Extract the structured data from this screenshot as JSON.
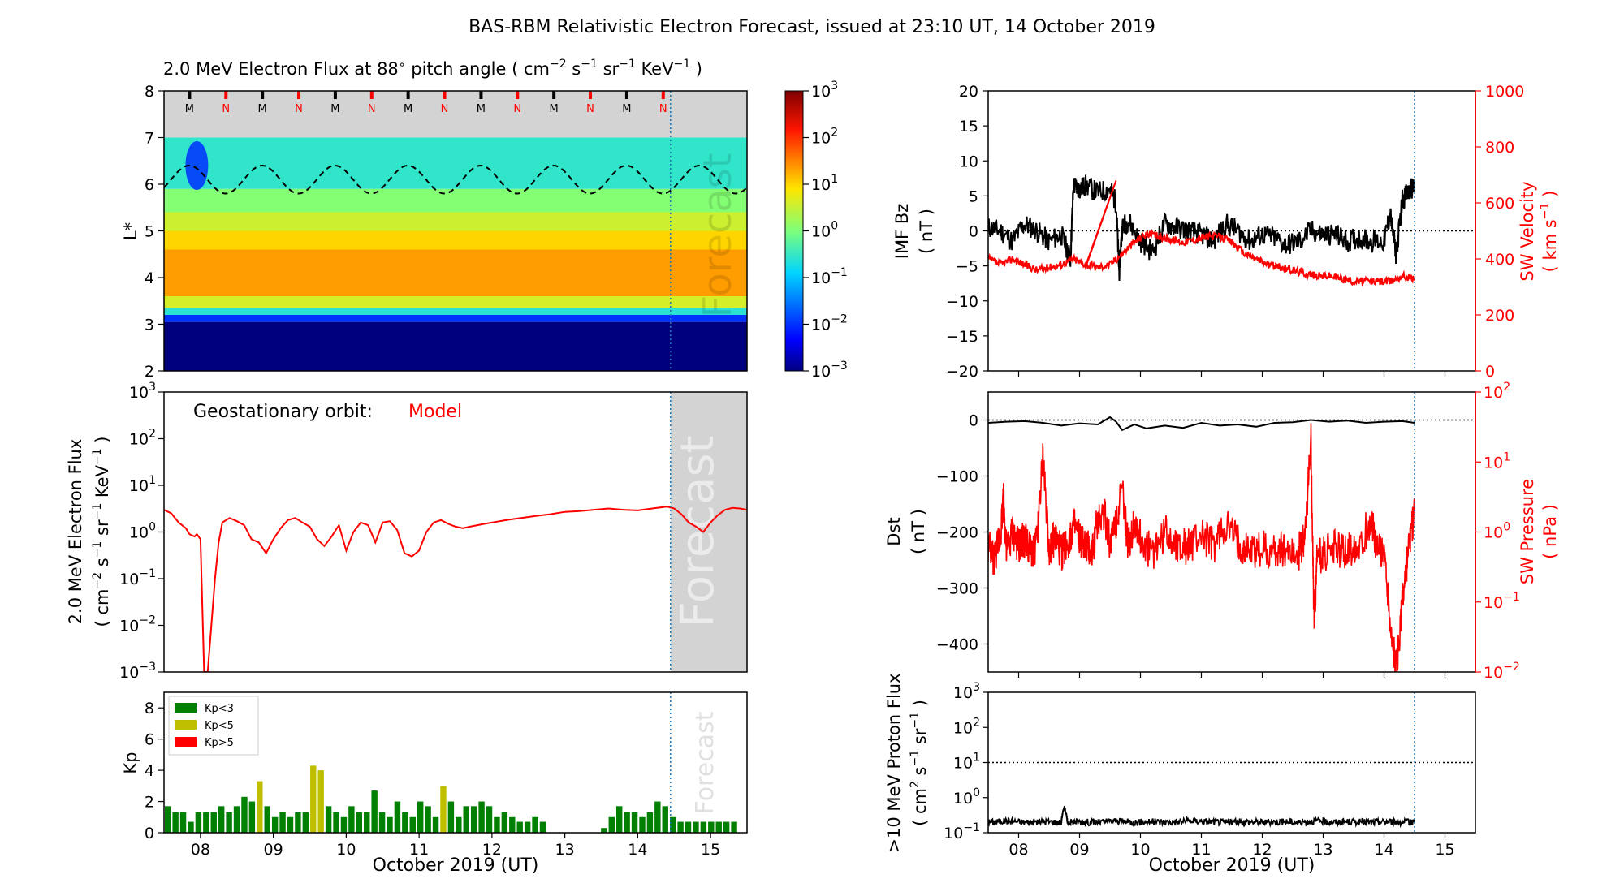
{
  "page": {
    "title": "BAS-RBM Relativistic Electron Forecast, issued at 23:10 UT, 14 October 2019"
  },
  "colors": {
    "black": "#000000",
    "red": "#ff0000",
    "forecast_gray": "#d3d3d3",
    "forecast_line": "#1f77b4",
    "kp_low": "#008000",
    "kp_mid": "#bfbf00",
    "kp_high": "#ff0000"
  },
  "chart_data": [
    {
      "id": "spectrogram",
      "type": "heatmap",
      "title_parts": {
        "main": "2.0 MeV Electron Flux at 88",
        "deg": "∘",
        "rest": " pitch angle ( cm",
        "e1": "−2",
        "s": " s",
        "e2": "−1",
        "sr": " sr",
        "e3": "−1",
        "kev": " KeV",
        "e4": "−1",
        "close": " )"
      },
      "ylabel": "L*",
      "y_ticks": [
        "2",
        "3",
        "4",
        "5",
        "6",
        "7",
        "8"
      ],
      "ylim": [
        2,
        8
      ],
      "xlim": [
        7.5,
        15.5
      ],
      "forecast_start": 14.45,
      "forecast_label": "Forecast",
      "orbit_markers": [
        {
          "t": 7.85,
          "label": "M",
          "color": "black"
        },
        {
          "t": 8.35,
          "label": "N",
          "color": "red"
        },
        {
          "t": 8.85,
          "label": "M",
          "color": "black"
        },
        {
          "t": 9.35,
          "label": "N",
          "color": "red"
        },
        {
          "t": 9.85,
          "label": "M",
          "color": "black"
        },
        {
          "t": 10.35,
          "label": "N",
          "color": "red"
        },
        {
          "t": 10.85,
          "label": "M",
          "color": "black"
        },
        {
          "t": 11.35,
          "label": "N",
          "color": "red"
        },
        {
          "t": 11.85,
          "label": "M",
          "color": "black"
        },
        {
          "t": 12.35,
          "label": "N",
          "color": "red"
        },
        {
          "t": 12.85,
          "label": "M",
          "color": "black"
        },
        {
          "t": 13.35,
          "label": "N",
          "color": "red"
        },
        {
          "t": 13.85,
          "label": "M",
          "color": "black"
        },
        {
          "t": 14.35,
          "label": "N",
          "color": "red"
        }
      ],
      "colorbar": {
        "ticks": [
          {
            "b": "10",
            "e": "3"
          },
          {
            "b": "10",
            "e": "2"
          },
          {
            "b": "10",
            "e": "1"
          },
          {
            "b": "10",
            "e": "0"
          },
          {
            "b": "10",
            "e": "−1"
          },
          {
            "b": "10",
            "e": "−2"
          },
          {
            "b": "10",
            "e": "−3"
          }
        ],
        "range_log": [
          -3,
          3
        ]
      },
      "bands_L": [
        {
          "L0": 2.0,
          "L1": 3.05,
          "logflux": -3.0
        },
        {
          "L0": 3.05,
          "L1": 3.2,
          "logflux": -2.0
        },
        {
          "L0": 3.2,
          "L1": 3.35,
          "logflux": -0.6
        },
        {
          "L0": 3.35,
          "L1": 3.6,
          "logflux": 0.6
        },
        {
          "L0": 3.6,
          "L1": 4.6,
          "logflux": 1.35
        },
        {
          "L0": 4.6,
          "L1": 5.0,
          "logflux": 1.0
        },
        {
          "L0": 5.0,
          "L1": 5.4,
          "logflux": 0.55
        },
        {
          "L0": 5.4,
          "L1": 5.9,
          "logflux": 0.05
        },
        {
          "L0": 5.9,
          "L1": 7.0,
          "logflux": -0.55
        }
      ],
      "magnetopause_L_mean": 6.1,
      "magnetopause_L_amp": 0.3
    },
    {
      "id": "geo_flux",
      "type": "line",
      "annotation_label": "Geostationary orbit:",
      "annotation_model": "Model",
      "ylabel_line1_parts": {
        "text": "2.0 MeV Electron Flux"
      },
      "ylabel_line2_parts": {
        "open": "( cm",
        "e1": "−2",
        "s": " s",
        "e2": "−1",
        "sr": " sr",
        "e3": "−1",
        "kev": " KeV",
        "e4": "−1",
        "close": " )"
      },
      "y_ticks": [
        {
          "b": "10",
          "e": "−3"
        },
        {
          "b": "10",
          "e": "−2"
        },
        {
          "b": "10",
          "e": "−1"
        },
        {
          "b": "10",
          "e": "0"
        },
        {
          "b": "10",
          "e": "1"
        },
        {
          "b": "10",
          "e": "2"
        },
        {
          "b": "10",
          "e": "3"
        }
      ],
      "ylim_log": [
        -3,
        3
      ],
      "xlim": [
        7.5,
        15.5
      ],
      "forecast_start": 14.45,
      "forecast_label": "Forecast",
      "x": [
        7.5,
        7.6,
        7.7,
        7.8,
        7.85,
        7.88,
        7.92,
        7.95,
        8.0,
        8.05,
        8.1,
        8.15,
        8.2,
        8.25,
        8.3,
        8.4,
        8.5,
        8.6,
        8.7,
        8.8,
        8.9,
        9.0,
        9.1,
        9.2,
        9.3,
        9.4,
        9.5,
        9.6,
        9.7,
        9.8,
        9.9,
        10.0,
        10.1,
        10.2,
        10.3,
        10.4,
        10.5,
        10.6,
        10.7,
        10.8,
        10.9,
        11.0,
        11.1,
        11.2,
        11.3,
        11.4,
        11.5,
        11.6,
        11.7,
        11.8,
        11.9,
        12.0,
        12.2,
        12.4,
        12.6,
        12.8,
        13.0,
        13.2,
        13.4,
        13.6,
        13.8,
        14.0,
        14.2,
        14.4,
        14.5,
        14.6,
        14.7,
        14.8,
        14.9,
        15.0,
        15.1,
        15.2,
        15.3,
        15.4,
        15.5
      ],
      "y": [
        3.0,
        2.5,
        1.6,
        1.2,
        0.9,
        0.85,
        0.8,
        0.9,
        0.7,
        0.001,
        0.001,
        0.01,
        0.1,
        0.6,
        1.6,
        2.0,
        1.7,
        1.4,
        0.7,
        0.6,
        0.35,
        0.7,
        1.2,
        1.8,
        2.0,
        1.6,
        1.3,
        0.7,
        0.5,
        0.8,
        1.4,
        0.4,
        1.0,
        1.6,
        1.4,
        0.6,
        1.6,
        1.7,
        1.1,
        0.35,
        0.3,
        0.4,
        1.0,
        1.6,
        1.8,
        1.5,
        1.3,
        1.2,
        1.3,
        1.4,
        1.5,
        1.6,
        1.8,
        2.0,
        2.2,
        2.4,
        2.7,
        2.8,
        3.0,
        3.2,
        3.0,
        2.9,
        3.2,
        3.5,
        3.2,
        2.4,
        1.6,
        1.3,
        1.0,
        1.6,
        2.3,
        3.0,
        3.3,
        3.2,
        3.0
      ]
    },
    {
      "id": "kp",
      "type": "bar",
      "ylabel": "Kp",
      "y_ticks": [
        "0",
        "2",
        "4",
        "6",
        "8"
      ],
      "ylim": [
        0,
        9
      ],
      "xlim": [
        7.5,
        15.5
      ],
      "xlabel": "October 2019 (UT)",
      "x_ticks": [
        "08",
        "09",
        "10",
        "11",
        "12",
        "13",
        "14",
        "15"
      ],
      "forecast_start": 14.45,
      "forecast_label": "Forecast",
      "legend": [
        {
          "label": "Kp<3",
          "color": "#008000"
        },
        {
          "label": "Kp<5",
          "color": "#bfbf00"
        },
        {
          "label": "Kp>5",
          "color": "#ff0000"
        }
      ],
      "bar_width_days": 0.105,
      "values": [
        1.7,
        1.3,
        1.3,
        0.7,
        1.3,
        1.3,
        1.3,
        1.7,
        1.3,
        1.7,
        2.3,
        2.0,
        3.3,
        1.7,
        1.0,
        1.3,
        1.0,
        1.3,
        1.3,
        4.3,
        4.0,
        1.7,
        1.3,
        1.0,
        1.7,
        1.3,
        1.3,
        2.7,
        1.3,
        1.0,
        2.0,
        1.3,
        1.0,
        2.0,
        1.7,
        1.0,
        3.0,
        2.0,
        1.0,
        1.7,
        1.7,
        2.0,
        1.7,
        1.0,
        1.3,
        1.0,
        0.7,
        0.7,
        1.0,
        0.7,
        0.0,
        0.0,
        0.0,
        0.0,
        0.0,
        0.0,
        0.0,
        0.3,
        1.0,
        1.7,
        1.3,
        1.3,
        1.0,
        1.3,
        2.0,
        1.7,
        1.0,
        0.7,
        0.7,
        0.7,
        0.7,
        0.7,
        0.7,
        0.7,
        0.7
      ]
    },
    {
      "id": "imf_sw",
      "type": "line",
      "ylabel_left_line1": "IMF Bz",
      "ylabel_left_line2": "( nT )",
      "ylabel_right_line1": "SW Velocity",
      "ylabel_right_line2_parts": {
        "open": "( km s",
        "e": "−1",
        "close": " )"
      },
      "y_ticks_left": [
        "−20",
        "−15",
        "−10",
        "−5",
        "0",
        "5",
        "10",
        "15",
        "20"
      ],
      "ylim_left": [
        -20,
        20
      ],
      "y_ticks_right": [
        "0",
        "200",
        "400",
        "600",
        "800",
        "1000"
      ],
      "ylim_right": [
        0,
        1000
      ],
      "xlim": [
        7.5,
        15.5
      ],
      "now": 14.5,
      "series": [
        {
          "axis": "left",
          "color": "#000000",
          "x": [
            7.5,
            7.7,
            7.9,
            8.1,
            8.3,
            8.5,
            8.7,
            8.85,
            8.9,
            9.0,
            9.1,
            9.3,
            9.5,
            9.6,
            9.65,
            9.7,
            9.8,
            10.0,
            10.2,
            10.4,
            10.6,
            10.8,
            11.0,
            11.2,
            11.4,
            11.6,
            11.8,
            12.0,
            12.2,
            12.4,
            12.6,
            12.8,
            13.0,
            13.2,
            13.4,
            13.6,
            13.8,
            14.0,
            14.1,
            14.2,
            14.3,
            14.4,
            14.5
          ],
          "y": [
            0.5,
            0.0,
            -1.5,
            1.0,
            0.0,
            -1.5,
            -0.5,
            -4.0,
            6.5,
            6.0,
            6.5,
            5.5,
            6.0,
            4.0,
            -6.0,
            0.5,
            1.5,
            -1.5,
            -3.0,
            1.0,
            0.5,
            0.0,
            -0.5,
            -1.5,
            1.0,
            0.0,
            -1.5,
            -0.5,
            -1.0,
            -2.0,
            -1.5,
            0.0,
            -0.5,
            -0.5,
            -1.5,
            -1.0,
            -1.5,
            -1.5,
            2.5,
            -3.5,
            4.5,
            5.5,
            6.5
          ]
        },
        {
          "axis": "right",
          "color": "#ff0000",
          "x": [
            7.5,
            7.7,
            7.9,
            8.1,
            8.3,
            8.5,
            8.7,
            8.9,
            9.1,
            9.3,
            9.5,
            9.7,
            9.9,
            10.1,
            10.3,
            10.5,
            10.7,
            10.9,
            11.1,
            11.3,
            11.5,
            11.7,
            11.9,
            12.1,
            12.3,
            12.5,
            12.7,
            12.9,
            13.1,
            13.3,
            13.5,
            13.7,
            13.9,
            14.1,
            14.3,
            14.5
          ],
          "y": [
            400,
            380,
            400,
            380,
            360,
            370,
            380,
            400,
            380,
            370,
            380,
            420,
            460,
            490,
            480,
            470,
            460,
            470,
            480,
            480,
            460,
            420,
            400,
            380,
            370,
            360,
            350,
            340,
            340,
            330,
            320,
            320,
            320,
            320,
            340,
            330
          ]
        }
      ]
    },
    {
      "id": "dst_swp",
      "type": "line",
      "ylabel_left_line1": "Dst",
      "ylabel_left_line2": "( nT )",
      "ylabel_right_line1": "SW Pressure",
      "ylabel_right_line2": "( nPa )",
      "y_ticks_left": [
        "−400",
        "−300",
        "−200",
        "−100",
        "0"
      ],
      "ylim_left": [
        -450,
        50
      ],
      "y_ticks_right": [
        {
          "b": "10",
          "e": "−2"
        },
        {
          "b": "10",
          "e": "−1"
        },
        {
          "b": "10",
          "e": "0"
        },
        {
          "b": "10",
          "e": "1"
        },
        {
          "b": "10",
          "e": "2"
        }
      ],
      "ylim_right_log": [
        -2,
        2
      ],
      "xlim": [
        7.5,
        15.5
      ],
      "now": 14.5,
      "series": [
        {
          "axis": "left",
          "color": "#000000",
          "x": [
            7.5,
            7.8,
            8.1,
            8.4,
            8.7,
            9.0,
            9.3,
            9.5,
            9.6,
            9.7,
            9.9,
            10.1,
            10.4,
            10.7,
            11.0,
            11.3,
            11.6,
            11.9,
            12.2,
            12.5,
            12.8,
            13.1,
            13.4,
            13.7,
            14.0,
            14.3,
            14.5
          ],
          "y": [
            -5,
            -3,
            -2,
            -5,
            -10,
            -6,
            -8,
            5,
            -3,
            -18,
            -8,
            -15,
            -10,
            -14,
            -5,
            -10,
            -8,
            -12,
            -5,
            -4,
            0,
            -3,
            -1,
            -5,
            -3,
            -2,
            -5
          ]
        },
        {
          "axis": "right",
          "color": "#ff0000",
          "x": [
            7.5,
            7.6,
            7.7,
            7.75,
            7.8,
            7.9,
            8.0,
            8.1,
            8.2,
            8.3,
            8.4,
            8.5,
            8.6,
            8.7,
            8.8,
            8.9,
            9.0,
            9.1,
            9.2,
            9.3,
            9.4,
            9.5,
            9.6,
            9.7,
            9.8,
            9.9,
            10.0,
            10.2,
            10.4,
            10.6,
            10.8,
            11.0,
            11.2,
            11.4,
            11.6,
            11.8,
            12.0,
            12.2,
            12.4,
            12.6,
            12.7,
            12.8,
            12.85,
            12.9,
            13.0,
            13.2,
            13.4,
            13.6,
            13.8,
            13.9,
            14.0,
            14.1,
            14.2,
            14.3,
            14.4,
            14.5
          ],
          "y": [
            0.6,
            0.4,
            0.9,
            3.0,
            0.5,
            1.0,
            0.6,
            0.8,
            0.5,
            0.7,
            12.0,
            0.6,
            0.8,
            0.5,
            0.7,
            1.2,
            0.8,
            0.6,
            0.5,
            1.5,
            2.0,
            0.7,
            1.5,
            4.0,
            0.6,
            1.5,
            0.8,
            0.5,
            1.0,
            0.7,
            0.6,
            0.9,
            0.6,
            1.2,
            0.7,
            0.5,
            0.6,
            0.5,
            0.6,
            0.5,
            0.9,
            20.0,
            0.05,
            0.4,
            0.5,
            0.6,
            0.5,
            0.7,
            1.5,
            0.5,
            0.6,
            0.05,
            0.01,
            0.1,
            0.5,
            2.0
          ]
        }
      ]
    },
    {
      "id": "proton",
      "type": "line",
      "ylabel_line1": ">10 MeV Proton Flux",
      "ylabel_line2_parts": {
        "open": "( cm",
        "e1": "2",
        "s": " s",
        "e2": "−1",
        "sr": " sr",
        "e3": "−1",
        "close": " )"
      },
      "y_ticks": [
        {
          "b": "10",
          "e": "−1"
        },
        {
          "b": "10",
          "e": "0"
        },
        {
          "b": "10",
          "e": "1"
        },
        {
          "b": "10",
          "e": "2"
        },
        {
          "b": "10",
          "e": "3"
        }
      ],
      "ylim_log": [
        -1,
        3
      ],
      "threshold": 10,
      "xlabel": "October 2019 (UT)",
      "x_ticks": [
        "08",
        "09",
        "10",
        "11",
        "12",
        "13",
        "14",
        "15"
      ],
      "xlim": [
        7.5,
        15.5
      ],
      "now": 14.5,
      "series": [
        {
          "color": "#000000",
          "x": [
            7.5,
            7.8,
            8.1,
            8.4,
            8.7,
            8.75,
            8.8,
            9.0,
            9.3,
            9.6,
            9.9,
            10.2,
            10.5,
            10.8,
            11.1,
            11.4,
            11.7,
            12.0,
            12.3,
            12.6,
            12.9,
            13.2,
            13.5,
            13.8,
            14.1,
            14.4,
            14.5
          ],
          "y": [
            0.2,
            0.22,
            0.2,
            0.21,
            0.2,
            0.55,
            0.2,
            0.21,
            0.2,
            0.22,
            0.2,
            0.21,
            0.2,
            0.22,
            0.21,
            0.2,
            0.21,
            0.2,
            0.21,
            0.2,
            0.22,
            0.2,
            0.21,
            0.2,
            0.21,
            0.2,
            0.21
          ]
        }
      ]
    }
  ]
}
